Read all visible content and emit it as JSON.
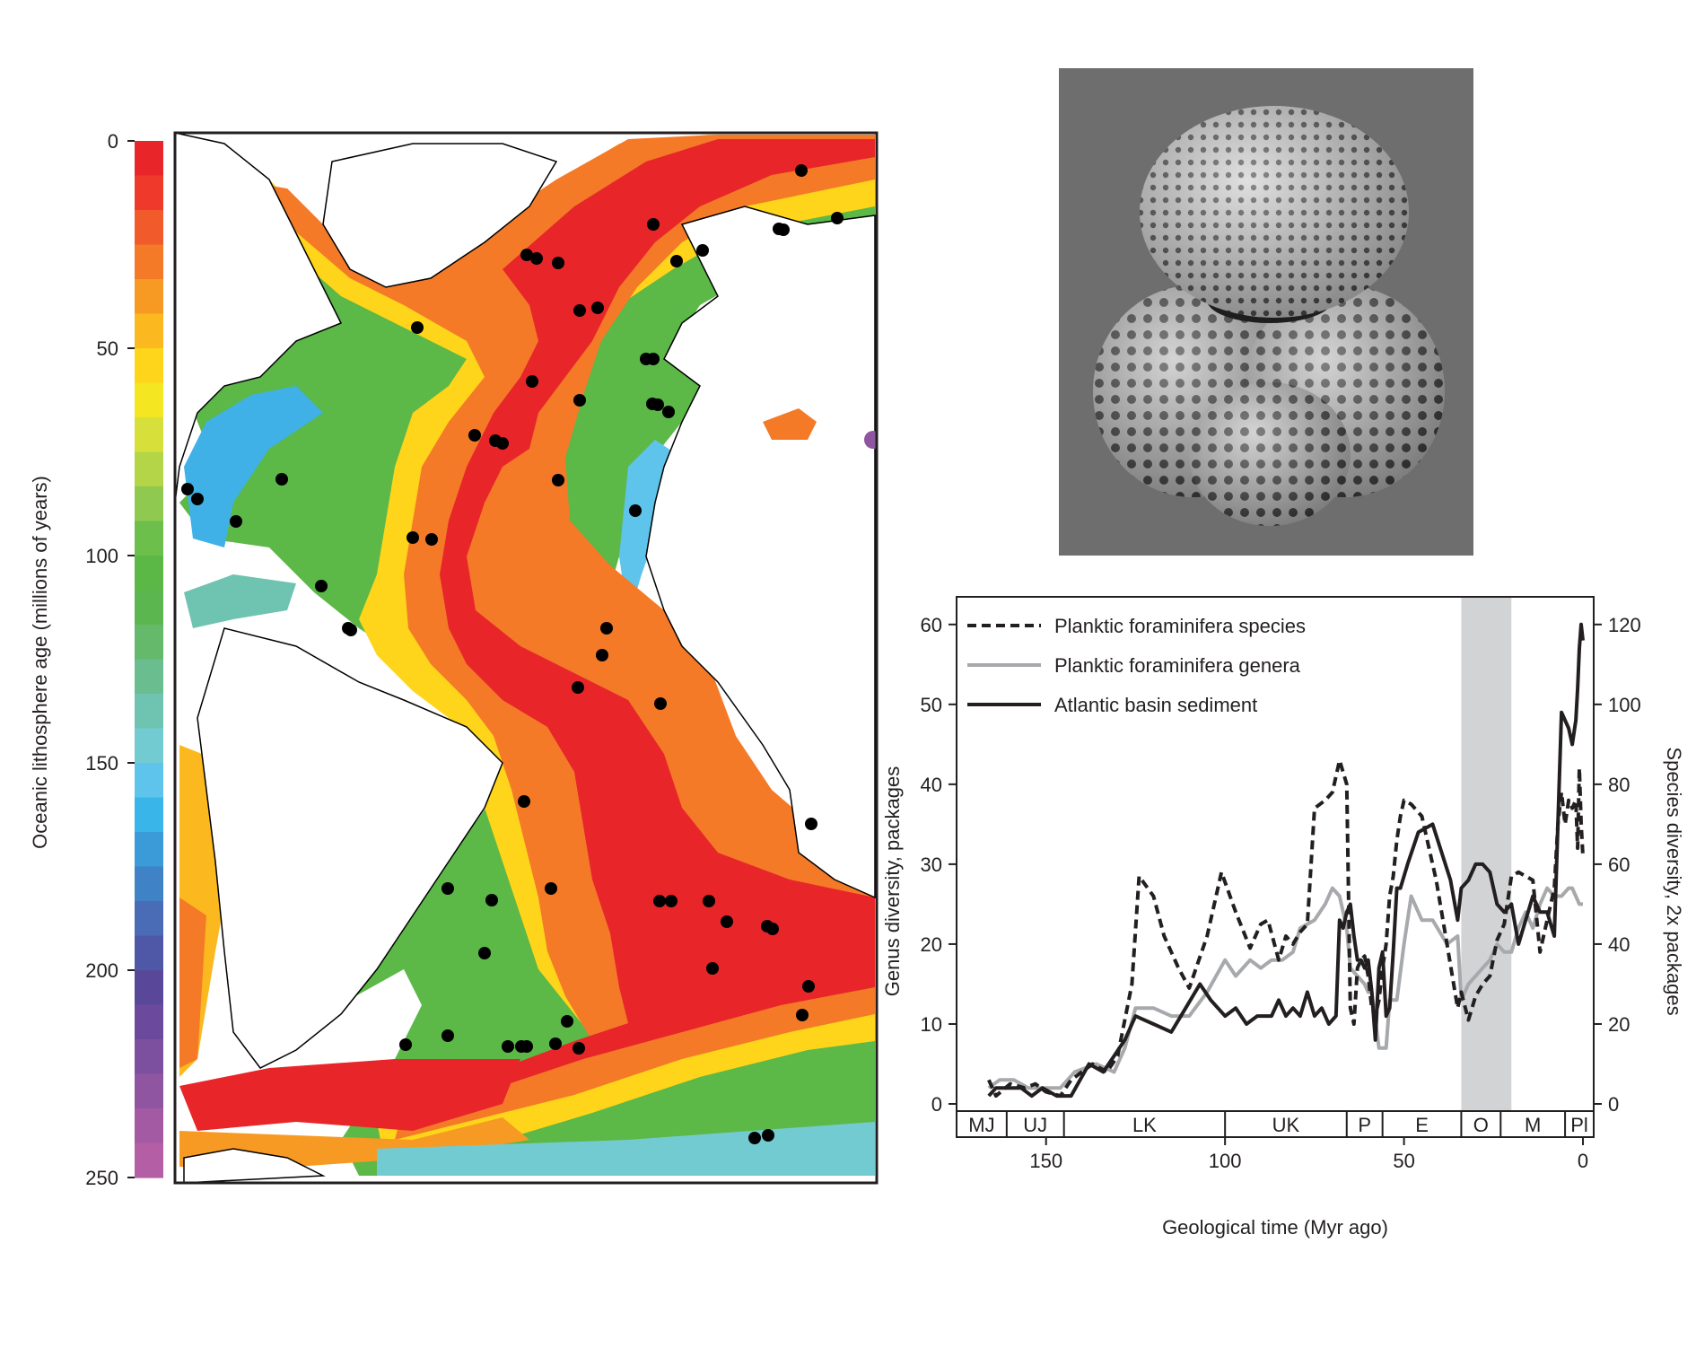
{
  "colorbar": {
    "axis_label": "Oceanic lithosphere age (millions of years)",
    "ticks": [
      "0",
      "50",
      "100",
      "150",
      "200",
      "250"
    ],
    "colors": [
      "#e8262a",
      "#ef3a2b",
      "#f15a2a",
      "#f47a28",
      "#f79a24",
      "#fbb91f",
      "#fed51a",
      "#f4e721",
      "#d7e03a",
      "#b4d548",
      "#8fc94f",
      "#6cbf4b",
      "#5bb847",
      "#5cb64f",
      "#64b96a",
      "#6abd8f",
      "#6ec4b1",
      "#73cbd2",
      "#5ec4eb",
      "#39b5ea",
      "#3a9bd8",
      "#4082c6",
      "#4a6bb5",
      "#4f58a6",
      "#59489a",
      "#6b4a9d",
      "#7d4f9f",
      "#8f55a0",
      "#a35aa3",
      "#b45ea5"
    ]
  },
  "map": {
    "site_marker_color": "#000000"
  },
  "sem_image": {
    "background_color": "#6e6e6e"
  },
  "chart_data": {
    "type": "line",
    "xlabel": "Geological time (Myr ago)",
    "ylabel_left": "Genus diversity, packages",
    "ylabel_right": "Species diversity, 2x packages",
    "xlim": [
      175,
      -3
    ],
    "ylim_left": [
      0,
      62
    ],
    "ylim_right": [
      0,
      124
    ],
    "x_ticks": [
      "150",
      "100",
      "50",
      "0"
    ],
    "y_ticks_left": [
      "0",
      "10",
      "20",
      "30",
      "40",
      "50",
      "60"
    ],
    "y_ticks_right": [
      "0",
      "20",
      "40",
      "60",
      "80",
      "100",
      "120"
    ],
    "shaded_band": {
      "from": 34,
      "to": 20,
      "color": "#d1d3d4"
    },
    "periods": [
      {
        "label": "MJ",
        "from": 175,
        "to": 161
      },
      {
        "label": "UJ",
        "from": 161,
        "to": 145
      },
      {
        "label": "LK",
        "from": 145,
        "to": 100
      },
      {
        "label": "UK",
        "from": 100,
        "to": 66
      },
      {
        "label": "P",
        "from": 66,
        "to": 56
      },
      {
        "label": "E",
        "from": 56,
        "to": 34
      },
      {
        "label": "O",
        "from": 34,
        "to": 23
      },
      {
        "label": "M",
        "from": 23,
        "to": 5
      },
      {
        "label": "Pl",
        "from": 5,
        "to": -3
      }
    ],
    "legend": [
      {
        "name": "Planktic foraminifera species",
        "style": "dashed",
        "color": "#231f20"
      },
      {
        "name": "Planktic foraminifera genera",
        "style": "solid",
        "color": "#a7a9ac"
      },
      {
        "name": "Atlantic basin sediment",
        "style": "solid",
        "color": "#231f20"
      }
    ],
    "series": [
      {
        "name": "Planktic foraminifera species",
        "axis": "right",
        "x": [
          166,
          164,
          160,
          156,
          153,
          150,
          146,
          143,
          137,
          133,
          130,
          126,
          124,
          120,
          117,
          113,
          110,
          105,
          101,
          97,
          93,
          90,
          88,
          85,
          83,
          81,
          79,
          77,
          75,
          72,
          70,
          68,
          66,
          65,
          64,
          63,
          62,
          61,
          60,
          59,
          58,
          57,
          56,
          55,
          54,
          53,
          52,
          51,
          50,
          48,
          45,
          41,
          38,
          35,
          34,
          32,
          30,
          28,
          26,
          24,
          22,
          20,
          18,
          16,
          14,
          12,
          10,
          8,
          7,
          6,
          5,
          4,
          3,
          2,
          1.5,
          1,
          0.5,
          0
        ],
        "y": [
          6,
          2,
          5,
          4,
          5,
          3,
          2,
          6,
          10,
          8,
          12,
          30,
          57,
          52,
          42,
          34,
          29,
          42,
          58,
          48,
          39,
          45,
          46,
          36,
          42,
          40,
          43,
          45,
          74,
          76,
          78,
          86,
          80,
          24,
          20,
          34,
          36,
          37,
          32,
          24,
          22,
          26,
          34,
          40,
          52,
          57,
          66,
          72,
          76,
          75,
          72,
          56,
          40,
          24,
          28,
          21,
          27,
          30,
          32,
          41,
          45,
          57,
          58,
          57,
          56,
          38,
          46,
          54,
          70,
          78,
          70,
          76,
          74,
          76,
          64,
          84,
          70,
          62
        ]
      },
      {
        "name": "Planktic foraminifera genera",
        "axis": "left",
        "x": [
          166,
          163,
          159,
          155,
          150,
          146,
          142,
          136,
          131,
          128,
          125,
          120,
          115,
          110,
          105,
          100,
          97,
          93,
          90,
          87,
          84,
          81,
          79,
          75,
          72,
          70,
          68,
          66,
          65,
          63,
          61,
          60,
          59,
          57,
          55,
          54,
          52,
          50,
          48,
          45,
          42,
          38,
          35,
          34,
          32,
          30,
          28,
          26,
          24,
          22,
          20,
          18,
          16,
          14,
          12,
          10,
          8,
          6,
          4,
          3,
          1,
          0
        ],
        "y": [
          2,
          3,
          3,
          2,
          2,
          2,
          4,
          5,
          4,
          7,
          12,
          12,
          11,
          11,
          14,
          18,
          16,
          18,
          17,
          18,
          18,
          19,
          22,
          23,
          25,
          27,
          26,
          22,
          17,
          16,
          15,
          14,
          14,
          7,
          7,
          13,
          13,
          20,
          26,
          23,
          23,
          20,
          21,
          13,
          15,
          16,
          17,
          18,
          20,
          19,
          19,
          22,
          24,
          22,
          25,
          27,
          26,
          26,
          27,
          27,
          25,
          25
        ]
      },
      {
        "name": "Atlantic basin sediment",
        "axis": "left",
        "x": [
          166,
          164,
          160,
          157,
          154,
          151,
          147,
          143,
          138,
          134,
          131,
          128,
          125,
          120,
          115,
          111,
          107,
          104,
          100,
          97,
          94,
          91,
          89,
          87,
          85,
          83,
          81,
          79,
          77,
          75,
          73,
          71,
          69,
          68,
          67,
          66,
          65,
          64,
          63,
          62,
          61,
          60,
          59,
          58,
          57,
          56,
          55,
          54,
          53,
          52,
          51,
          49,
          46,
          42,
          37,
          35,
          34,
          32,
          30,
          28,
          26,
          24,
          22,
          20,
          18,
          16,
          14,
          12,
          10,
          8,
          6,
          4,
          3,
          2,
          1.5,
          1,
          0.5,
          0
        ],
        "y": [
          1,
          2,
          2,
          2,
          1,
          2,
          1,
          1,
          5,
          4,
          6,
          8,
          11,
          10,
          9,
          12,
          15,
          13,
          11,
          12,
          10,
          11,
          11,
          11,
          13,
          11,
          12,
          11,
          14,
          11,
          12,
          10,
          11,
          23,
          22,
          24,
          25,
          21,
          18,
          18,
          17,
          18,
          14,
          8,
          17,
          19,
          11,
          12,
          19,
          27,
          27,
          30,
          34,
          35,
          28,
          23,
          27,
          28,
          30,
          30,
          29,
          25,
          24,
          25,
          20,
          23,
          26,
          24,
          24,
          21,
          49,
          47,
          45,
          48,
          52,
          57,
          60,
          58
        ]
      }
    ]
  }
}
